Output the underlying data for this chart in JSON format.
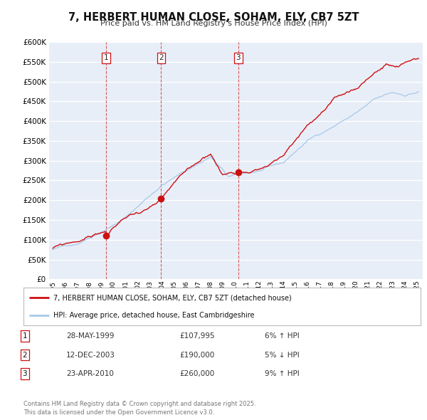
{
  "title": "7, HERBERT HUMAN CLOSE, SOHAM, ELY, CB7 5ZT",
  "subtitle": "Price paid vs. HM Land Registry's House Price Index (HPI)",
  "legend_line1": "7, HERBERT HUMAN CLOSE, SOHAM, ELY, CB7 5ZT (detached house)",
  "legend_line2": "HPI: Average price, detached house, East Cambridgeshire",
  "footer": "Contains HM Land Registry data © Crown copyright and database right 2025.\nThis data is licensed under the Open Government Licence v3.0.",
  "transactions": [
    {
      "num": 1,
      "date": "28-MAY-1999",
      "price": 107995,
      "pct": "6%",
      "dir": "↑",
      "year": 1999.38
    },
    {
      "num": 2,
      "date": "12-DEC-2003",
      "price": 190000,
      "pct": "5%",
      "dir": "↓",
      "year": 2003.94
    },
    {
      "num": 3,
      "date": "23-APR-2010",
      "price": 260000,
      "pct": "9%",
      "dir": "↑",
      "year": 2010.3
    }
  ],
  "vline_color": "#d04040",
  "hpi_line_color": "#a8c8e8",
  "price_line_color": "#cc1111",
  "ylim": [
    0,
    600000
  ],
  "yticks": [
    0,
    50000,
    100000,
    150000,
    200000,
    250000,
    300000,
    350000,
    400000,
    450000,
    500000,
    550000,
    600000
  ],
  "background_color": "#e8eef8",
  "fig_bg": "#ffffff"
}
